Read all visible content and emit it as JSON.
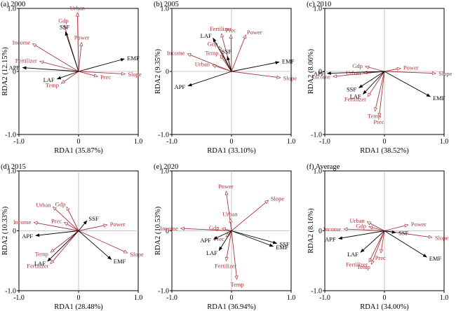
{
  "colors": {
    "axis": "#000000",
    "ref_line": "#b8b8b8",
    "response": "#000000",
    "explanatory": "#a8343a"
  },
  "chart_data": [
    {
      "type": "scatter",
      "panel_label": "(a) 2000",
      "xlabel": "RDA1 (35.87%)",
      "ylabel": "RDA2 (12.15%)",
      "xlim": [
        -1.0,
        1.0
      ],
      "ylim": [
        -1.0,
        1.0
      ],
      "x_ticks": [
        "-1.0",
        "0",
        "1.0"
      ],
      "y_ticks": [
        "1.0",
        "0",
        "-1.0"
      ],
      "response_vectors": [
        {
          "name": "SSF",
          "x": -0.22,
          "y": 0.63
        },
        {
          "name": "APF",
          "x": -0.94,
          "y": 0.06
        },
        {
          "name": "LAF",
          "x": -0.36,
          "y": -0.12
        },
        {
          "name": "EMF",
          "x": 0.77,
          "y": 0.2
        }
      ],
      "explanatory_vectors": [
        {
          "name": "Urban",
          "x": -0.02,
          "y": 0.93
        },
        {
          "name": "Gdp",
          "x": -0.24,
          "y": 0.73
        },
        {
          "name": "Power",
          "x": 0.05,
          "y": 0.46
        },
        {
          "name": "Income",
          "x": -0.77,
          "y": 0.44
        },
        {
          "name": "Fertilizer",
          "x": -0.65,
          "y": 0.16
        },
        {
          "name": "Temp",
          "x": -0.29,
          "y": -0.19
        },
        {
          "name": "Prec",
          "x": 0.32,
          "y": -0.08
        },
        {
          "name": "Slope",
          "x": 0.78,
          "y": -0.04
        }
      ]
    },
    {
      "type": "scatter",
      "panel_label": "(b) 2005",
      "xlabel": "RDA1 (33.10%)",
      "ylabel": "RDA2 (9.35%)",
      "xlim": [
        -1.0,
        1.0
      ],
      "ylim": [
        -1.0,
        1.0
      ],
      "x_ticks": [
        "-1.0",
        "0",
        "1.0"
      ],
      "y_ticks": [
        "1.0",
        "0",
        "-1.0"
      ],
      "response_vectors": [
        {
          "name": "LAF",
          "x": -0.31,
          "y": 0.53
        },
        {
          "name": "SSF",
          "x": -0.07,
          "y": 0.24
        },
        {
          "name": "APF",
          "x": -0.73,
          "y": -0.23
        },
        {
          "name": "EMF",
          "x": 0.8,
          "y": 0.15
        }
      ],
      "explanatory_vectors": [
        {
          "name": "Fertilizer",
          "x": -0.17,
          "y": 0.6
        },
        {
          "name": "Prec",
          "x": -0.01,
          "y": 0.58
        },
        {
          "name": "Power",
          "x": 0.24,
          "y": 0.58
        },
        {
          "name": "Gdp",
          "x": -0.21,
          "y": 0.4
        },
        {
          "name": "Temp",
          "x": -0.19,
          "y": 0.26
        },
        {
          "name": "Income",
          "x": -0.74,
          "y": 0.28
        },
        {
          "name": "Urban",
          "x": -0.32,
          "y": 0.1
        },
        {
          "name": "Slope",
          "x": 0.82,
          "y": -0.1
        }
      ]
    },
    {
      "type": "scatter",
      "panel_label": "(c) 2010",
      "xlabel": "RDA1 (38.52%)",
      "ylabel": "RDA2 (8.06%)",
      "xlim": [
        -1.0,
        1.0
      ],
      "ylim": [
        -1.0,
        1.0
      ],
      "x_ticks": [
        "-1.0",
        "0",
        "1.0"
      ],
      "y_ticks": [
        "1.0",
        "0",
        "-1.0"
      ],
      "response_vectors": [
        {
          "name": "APF",
          "x": -0.96,
          "y": -0.03
        },
        {
          "name": "SSF",
          "x": -0.43,
          "y": -0.26
        },
        {
          "name": "LAF",
          "x": -0.36,
          "y": -0.36
        },
        {
          "name": "EMF",
          "x": 0.77,
          "y": -0.4
        }
      ],
      "explanatory_vectors": [
        {
          "name": "Gdp",
          "x": -0.32,
          "y": 0.08
        },
        {
          "name": "Urban",
          "x": -0.35,
          "y": -0.02
        },
        {
          "name": "Income",
          "x": -0.86,
          "y": -0.08
        },
        {
          "name": "Fertilizer",
          "x": -0.28,
          "y": -0.4
        },
        {
          "name": "Temp",
          "x": -0.16,
          "y": -0.63
        },
        {
          "name": "Prec",
          "x": -0.09,
          "y": -0.72
        },
        {
          "name": "Power",
          "x": 0.27,
          "y": 0.05
        },
        {
          "name": "Slope",
          "x": 0.86,
          "y": -0.03
        }
      ]
    },
    {
      "type": "scatter",
      "panel_label": "(d) 2015",
      "xlabel": "RDA1 (28.48%)",
      "ylabel": "RDA2 (10.33%)",
      "xlim": [
        -1.0,
        1.0
      ],
      "ylim": [
        -1.0,
        1.0
      ],
      "x_ticks": [
        "-1.0",
        "0",
        "1.0"
      ],
      "y_ticks": [
        "1.0",
        "0",
        "-1.0"
      ],
      "response_vectors": [
        {
          "name": "SSF",
          "x": 0.14,
          "y": 0.17
        },
        {
          "name": "APF",
          "x": -0.72,
          "y": -0.08
        },
        {
          "name": "LAF",
          "x": -0.52,
          "y": -0.51
        },
        {
          "name": "EMF",
          "x": 0.55,
          "y": -0.48
        }
      ],
      "explanatory_vectors": [
        {
          "name": "Urban",
          "x": -0.43,
          "y": 0.4
        },
        {
          "name": "Gdp",
          "x": -0.2,
          "y": 0.4
        },
        {
          "name": "Income",
          "x": -0.75,
          "y": 0.14
        },
        {
          "name": "Prec",
          "x": -0.24,
          "y": 0.14
        },
        {
          "name": "Temp",
          "x": -0.47,
          "y": -0.36
        },
        {
          "name": "Fertilizer",
          "x": -0.47,
          "y": -0.55
        },
        {
          "name": "Power",
          "x": 0.48,
          "y": 0.1
        },
        {
          "name": "Slope",
          "x": 0.82,
          "y": -0.37
        }
      ]
    },
    {
      "type": "scatter",
      "panel_label": "(e) 2020",
      "xlabel": "RDA1 (36.94%)",
      "ylabel": "RDA2 (10.53%)",
      "xlim": [
        -1.0,
        1.0
      ],
      "ylim": [
        -1.0,
        1.0
      ],
      "x_ticks": [
        "-1.0",
        "0",
        "1.0"
      ],
      "y_ticks": [
        "1.0",
        "0",
        "-1.0"
      ],
      "response_vectors": [
        {
          "name": "APF",
          "x": -0.3,
          "y": -0.14
        },
        {
          "name": "LAF",
          "x": -0.21,
          "y": -0.33
        },
        {
          "name": "SSF",
          "x": 0.76,
          "y": -0.21
        },
        {
          "name": "EMF",
          "x": 0.7,
          "y": -0.26
        }
      ],
      "explanatory_vectors": [
        {
          "name": "Power",
          "x": -0.09,
          "y": 0.66
        },
        {
          "name": "Slope",
          "x": 0.62,
          "y": 0.51
        },
        {
          "name": "Urban",
          "x": -0.02,
          "y": 0.2
        },
        {
          "name": "Gdp",
          "x": -0.16,
          "y": 0.04
        },
        {
          "name": "Income",
          "x": -0.85,
          "y": 0.04
        },
        {
          "name": "Prec",
          "x": -0.09,
          "y": -0.1
        },
        {
          "name": "Fertilizer",
          "x": -0.09,
          "y": -0.5
        },
        {
          "name": "Temp",
          "x": 0.09,
          "y": -0.81
        }
      ]
    },
    {
      "type": "scatter",
      "panel_label": "(f) Average",
      "xlabel": "RDA1 (34.00%)",
      "ylabel": "RDA2 (8.16%)",
      "xlim": [
        -1.0,
        1.0
      ],
      "ylim": [
        -1.0,
        1.0
      ],
      "x_ticks": [
        "-1.0",
        "0",
        "1.0"
      ],
      "y_ticks": [
        "1.0",
        "0",
        "-1.0"
      ],
      "response_vectors": [
        {
          "name": "APF",
          "x": -0.77,
          "y": -0.13
        },
        {
          "name": "SSF",
          "x": 0.19,
          "y": -0.03
        },
        {
          "name": "LAF",
          "x": -0.4,
          "y": -0.36
        },
        {
          "name": "EMF",
          "x": 0.71,
          "y": -0.44
        }
      ],
      "explanatory_vectors": [
        {
          "name": "Urban",
          "x": -0.29,
          "y": 0.15
        },
        {
          "name": "Gdp",
          "x": -0.26,
          "y": 0.07
        },
        {
          "name": "Income",
          "x": -0.68,
          "y": 0.03
        },
        {
          "name": "Power",
          "x": 0.4,
          "y": 0.1
        },
        {
          "name": "Slope",
          "x": 0.8,
          "y": -0.11
        },
        {
          "name": "Prec",
          "x": -0.06,
          "y": -0.37
        },
        {
          "name": "Fertilizer",
          "x": -0.26,
          "y": -0.52
        },
        {
          "name": "Temp",
          "x": -0.22,
          "y": -0.56
        }
      ]
    }
  ]
}
